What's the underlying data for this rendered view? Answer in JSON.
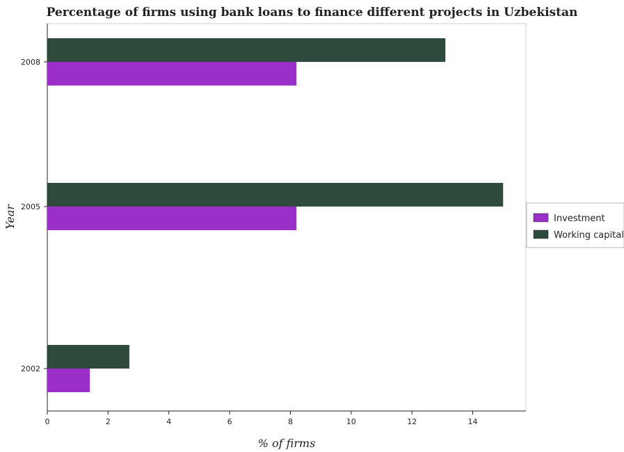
{
  "chart_data": {
    "type": "bar",
    "orientation": "horizontal",
    "title": "Percentage of firms using bank loans to finance different projects in Uzbekistan",
    "xlabel": "% of firms",
    "ylabel": "Year",
    "categories": [
      "2002",
      "2005",
      "2008"
    ],
    "series": [
      {
        "name": "Investment",
        "values": [
          1.4,
          8.2,
          8.2
        ],
        "color": "#9b30c8"
      },
      {
        "name": "Working capital",
        "values": [
          2.7,
          15.0,
          13.1
        ],
        "color": "#2d4a3c"
      }
    ],
    "xlim": [
      0,
      15.75
    ],
    "xticks": [
      0,
      2,
      4,
      6,
      8,
      10,
      12,
      14
    ],
    "legend_position": "right",
    "grid": false
  }
}
